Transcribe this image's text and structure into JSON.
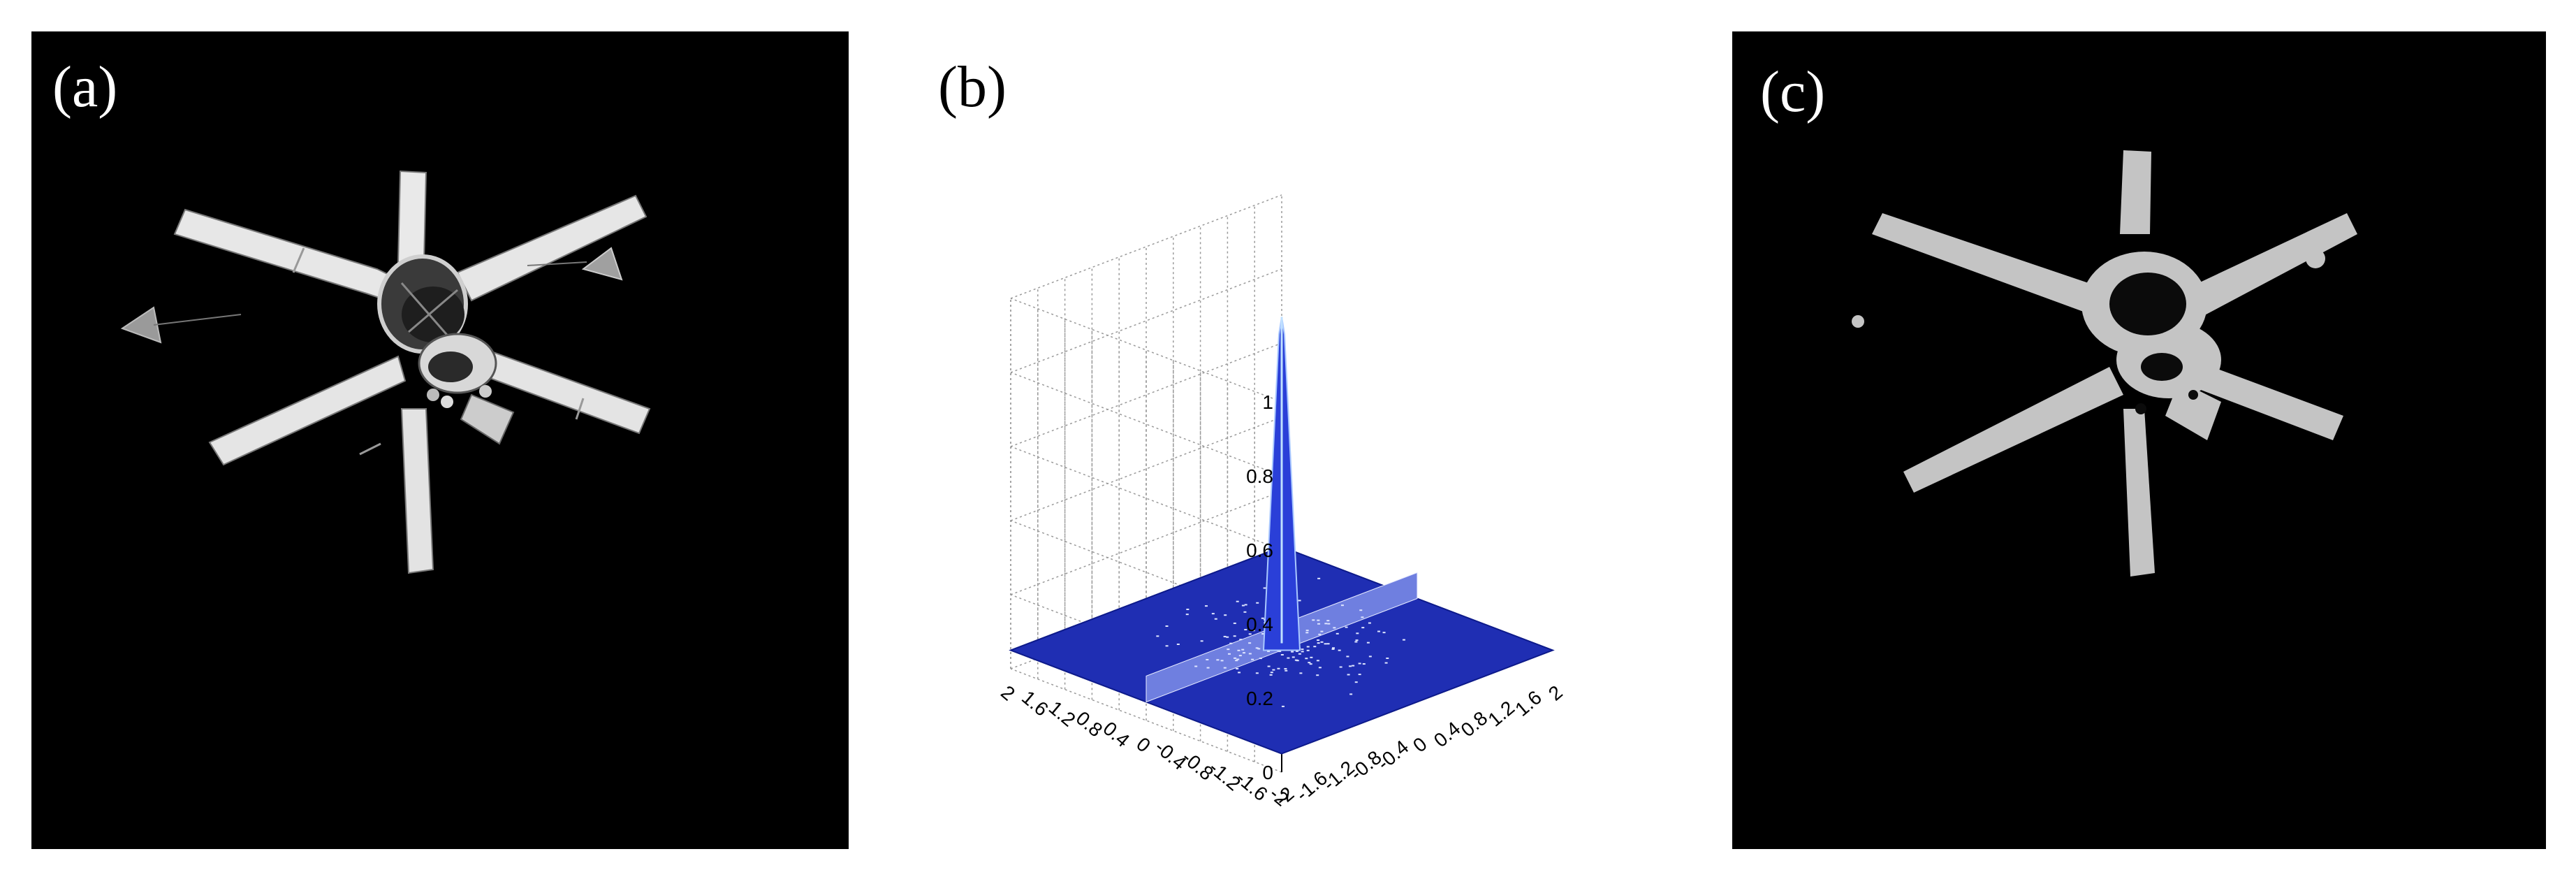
{
  "figure": {
    "panels": [
      {
        "id": "a",
        "label": "(a)",
        "content": "original-image"
      },
      {
        "id": "b",
        "label": "(b)",
        "content": "3d-surface-plot"
      },
      {
        "id": "c",
        "label": "(c)",
        "content": "segmented-image"
      }
    ]
  },
  "chart_data": {
    "type": "surface",
    "z_ticks": [
      "0",
      "0.2",
      "0.4",
      "0.6",
      "0.8",
      "1"
    ],
    "x_ticks": [
      "-2",
      "-1.6",
      "-1.2",
      "-0.8",
      "-0.4",
      "0",
      "0.4",
      "0.8",
      "1.2",
      "1.6",
      "2"
    ],
    "y_ticks": [
      "-2",
      "-1.6",
      "-1.2",
      "-0.8",
      "-0.4",
      "0",
      "0.4",
      "0.8",
      "1.2",
      "1.6",
      "2"
    ],
    "zlim": [
      0,
      1
    ],
    "xlim": [
      -2,
      2
    ],
    "ylim": [
      -2,
      2
    ],
    "peak": {
      "x": 0,
      "y": 0,
      "z": 0.95
    },
    "grid": true,
    "surface_color": "#1f2eb3"
  }
}
